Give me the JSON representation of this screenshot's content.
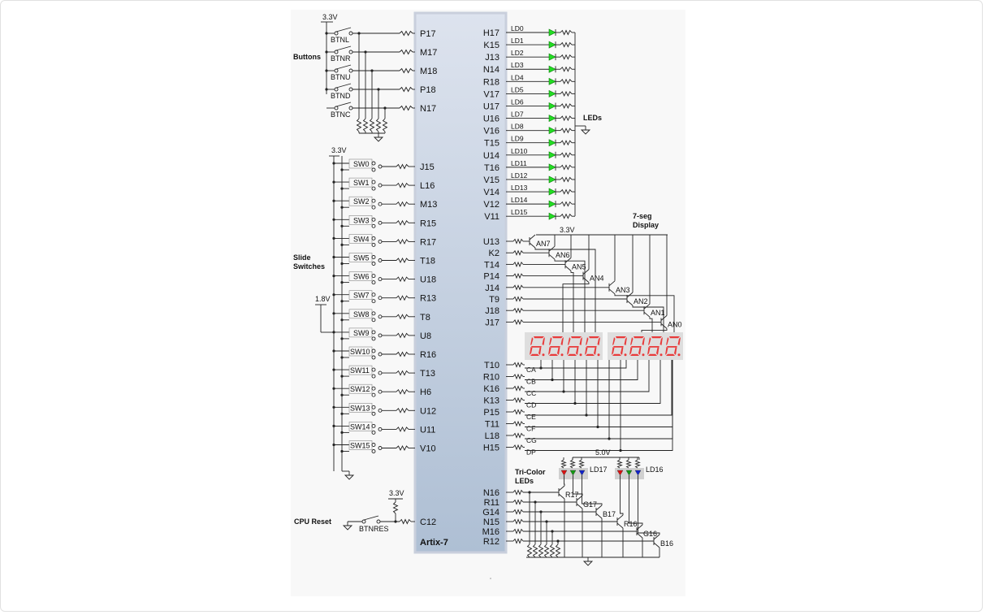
{
  "fpga": {
    "part": "Artix-7"
  },
  "labels": {
    "buttons": "Buttons",
    "slide_switches": [
      "Slide",
      "Switches"
    ],
    "cpu_reset": "CPU Reset",
    "leds": "LEDs",
    "seg_display": [
      "7-seg",
      "Display"
    ],
    "tricolor": [
      "Tri-Color",
      "LEDs"
    ],
    "v33": "3.3V",
    "v18": "1.8V",
    "v50": "5.0V"
  },
  "buttons": [
    {
      "name": "BTNL",
      "pin": "P17"
    },
    {
      "name": "BTNR",
      "pin": "M17"
    },
    {
      "name": "BTNU",
      "pin": "M18"
    },
    {
      "name": "BTND",
      "pin": "P18"
    },
    {
      "name": "BTNC",
      "pin": "N17"
    }
  ],
  "switches": [
    {
      "name": "SW0",
      "pin": "J15"
    },
    {
      "name": "SW1",
      "pin": "L16"
    },
    {
      "name": "SW2",
      "pin": "M13"
    },
    {
      "name": "SW3",
      "pin": "R15"
    },
    {
      "name": "SW4",
      "pin": "R17"
    },
    {
      "name": "SW5",
      "pin": "T18"
    },
    {
      "name": "SW6",
      "pin": "U18"
    },
    {
      "name": "SW7",
      "pin": "R13"
    },
    {
      "name": "SW8",
      "pin": "T8"
    },
    {
      "name": "SW9",
      "pin": "U8"
    },
    {
      "name": "SW10",
      "pin": "R16"
    },
    {
      "name": "SW11",
      "pin": "T13"
    },
    {
      "name": "SW12",
      "pin": "H6"
    },
    {
      "name": "SW13",
      "pin": "U12"
    },
    {
      "name": "SW14",
      "pin": "U11"
    },
    {
      "name": "SW15",
      "pin": "V10"
    }
  ],
  "reset": {
    "name": "BTNRES",
    "pin": "C12"
  },
  "leds": [
    {
      "name": "LD0",
      "pin": "H17"
    },
    {
      "name": "LD1",
      "pin": "K15"
    },
    {
      "name": "LD2",
      "pin": "J13"
    },
    {
      "name": "LD3",
      "pin": "N14"
    },
    {
      "name": "LD4",
      "pin": "R18"
    },
    {
      "name": "LD5",
      "pin": "V17"
    },
    {
      "name": "LD6",
      "pin": "U17"
    },
    {
      "name": "LD7",
      "pin": "U16"
    },
    {
      "name": "LD8",
      "pin": "V16"
    },
    {
      "name": "LD9",
      "pin": "T15"
    },
    {
      "name": "LD10",
      "pin": "U14"
    },
    {
      "name": "LD11",
      "pin": "T16"
    },
    {
      "name": "LD12",
      "pin": "V15"
    },
    {
      "name": "LD13",
      "pin": "V14"
    },
    {
      "name": "LD14",
      "pin": "V12"
    },
    {
      "name": "LD15",
      "pin": "V11"
    }
  ],
  "anodes": [
    {
      "name": "AN7",
      "pin": "U13"
    },
    {
      "name": "AN6",
      "pin": "K2"
    },
    {
      "name": "AN5",
      "pin": "T14"
    },
    {
      "name": "AN4",
      "pin": "P14"
    },
    {
      "name": "AN3",
      "pin": "J14"
    },
    {
      "name": "AN2",
      "pin": "T9"
    },
    {
      "name": "AN1",
      "pin": "J18"
    },
    {
      "name": "AN0",
      "pin": "J17"
    }
  ],
  "segments": [
    {
      "name": "CA",
      "pin": "T10"
    },
    {
      "name": "CB",
      "pin": "R10"
    },
    {
      "name": "CC",
      "pin": "K16"
    },
    {
      "name": "CD",
      "pin": "K13"
    },
    {
      "name": "CE",
      "pin": "P15"
    },
    {
      "name": "CF",
      "pin": "T11"
    },
    {
      "name": "CG",
      "pin": "L18"
    },
    {
      "name": "DP",
      "pin": "H15"
    }
  ],
  "rgb": [
    {
      "name": "R17",
      "pin": "N16"
    },
    {
      "name": "G17",
      "pin": "R11"
    },
    {
      "name": "B17",
      "pin": "G14"
    },
    {
      "name": "R16",
      "pin": "N15"
    },
    {
      "name": "G16",
      "pin": "M16"
    },
    {
      "name": "B16",
      "pin": "R12"
    }
  ],
  "rgb_leds": [
    "LD17",
    "LD16"
  ],
  "colors": {
    "fpga_top": "#dde3ee",
    "fpga_bottom": "#aebfd4",
    "fpga_border": "#c9cfdc",
    "led": "#22dd22",
    "seg_on": "#e83a3a",
    "seg_bg": "#dedede",
    "red": "#dd1111",
    "green": "#119911",
    "blue": "#1122cc",
    "wire": "#222222"
  }
}
